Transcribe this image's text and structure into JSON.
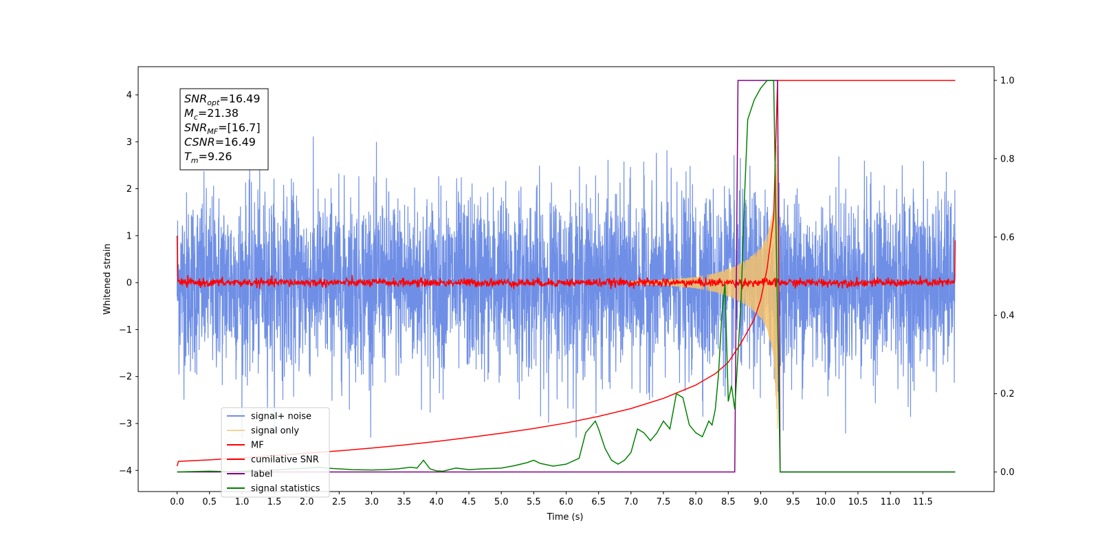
{
  "chart_data": {
    "type": "line",
    "xlabel": "Time (s)",
    "ylabel": "Whitened strain",
    "xlim": [
      -0.6,
      12.6
    ],
    "ylim": [
      -4.45,
      4.6
    ],
    "ylim_right": [
      -0.05,
      1.035
    ],
    "x_ticks": [
      "0.0",
      "0.5",
      "1.0",
      "1.5",
      "2.0",
      "2.5",
      "3.0",
      "3.5",
      "4.0",
      "4.5",
      "5.0",
      "5.5",
      "6.0",
      "6.5",
      "7.0",
      "7.5",
      "8.0",
      "8.5",
      "9.0",
      "9.5",
      "10.0",
      "10.5",
      "11.0",
      "11.5"
    ],
    "y_ticks_left": [
      "−4",
      "−3",
      "−2",
      "−1",
      "0",
      "1",
      "2",
      "3",
      "4"
    ],
    "y_ticks_right": [
      "0.0",
      "0.2",
      "0.4",
      "0.6",
      "0.8",
      "1.0"
    ],
    "grid": false,
    "legend_position": "lower-left",
    "info_box": {
      "lines": [
        {
          "label": "SNR",
          "sub": "opt",
          "value": "=16.49"
        },
        {
          "label": "M",
          "sub": "c",
          "value": "=21.38"
        },
        {
          "label": "SNR",
          "sub": "MF",
          "value": "=[16.7]"
        },
        {
          "label": "CSNR",
          "sub": "",
          "value": "=16.49"
        },
        {
          "label": "T",
          "sub": "m",
          "value": "=9.26"
        }
      ]
    },
    "series": [
      {
        "name": "signal+ noise",
        "color": "#6f8fe6",
        "axis": "left",
        "description": "whitened noise with embedded signal, amplitude envelope approx ±3.3, spans t 0.0 to 12.0",
        "x_range": [
          0.0,
          12.0
        ],
        "envelope": [
          -3.3,
          3.3
        ]
      },
      {
        "name": "signal only",
        "color": "#f5c26b",
        "axis": "left",
        "description": "chirp growing in amplitude toward merger",
        "x": [
          7.0,
          7.5,
          8.0,
          8.3,
          8.6,
          8.8,
          9.0,
          9.1,
          9.2,
          9.26,
          9.3
        ],
        "envelope": [
          0.03,
          0.06,
          0.12,
          0.2,
          0.35,
          0.5,
          0.75,
          1.0,
          1.6,
          3.2,
          0.0
        ]
      },
      {
        "name": "MF",
        "color": "#ff0000",
        "axis": "left",
        "description": "matched filter output, fluctuating near 0 with edge spikes",
        "x_range": [
          0.0,
          12.0
        ],
        "level": 0.0,
        "edge_values": {
          "start": 1.0,
          "end": 0.9
        }
      },
      {
        "name": "cumilative SNR",
        "color": "#ff0000",
        "axis": "right",
        "x": [
          0.0,
          0.02,
          0.5,
          1.0,
          1.5,
          2.0,
          2.5,
          3.0,
          3.5,
          4.0,
          4.5,
          5.0,
          5.5,
          6.0,
          6.5,
          7.0,
          7.5,
          8.0,
          8.3,
          8.5,
          8.7,
          8.9,
          9.0,
          9.1,
          9.2,
          9.26,
          12.0
        ],
        "values": [
          0.015,
          0.027,
          0.031,
          0.036,
          0.042,
          0.048,
          0.054,
          0.061,
          0.069,
          0.078,
          0.088,
          0.099,
          0.111,
          0.125,
          0.142,
          0.162,
          0.188,
          0.222,
          0.251,
          0.28,
          0.33,
          0.39,
          0.44,
          0.52,
          0.65,
          1.0,
          1.0
        ]
      },
      {
        "name": "label",
        "color": "#800080",
        "axis": "right",
        "x": [
          0.0,
          8.6,
          8.65,
          9.26,
          9.3,
          12.0
        ],
        "values": [
          0.0,
          0.0,
          1.0,
          1.0,
          0.0,
          0.0
        ]
      },
      {
        "name": "signal statistics",
        "color": "#008000",
        "axis": "right",
        "x": [
          0.0,
          0.2,
          0.5,
          0.8,
          1.0,
          1.3,
          1.5,
          1.8,
          2.0,
          2.2,
          2.3,
          2.5,
          2.7,
          3.0,
          3.2,
          3.4,
          3.6,
          3.7,
          3.8,
          3.9,
          4.0,
          4.1,
          4.3,
          4.5,
          4.7,
          5.0,
          5.2,
          5.4,
          5.5,
          5.6,
          5.8,
          6.0,
          6.2,
          6.3,
          6.4,
          6.45,
          6.5,
          6.6,
          6.7,
          6.8,
          6.9,
          7.0,
          7.1,
          7.2,
          7.3,
          7.4,
          7.5,
          7.6,
          7.7,
          7.8,
          7.9,
          8.0,
          8.1,
          8.2,
          8.25,
          8.3,
          8.35,
          8.4,
          8.45,
          8.5,
          8.55,
          8.6,
          8.65,
          8.7,
          8.75,
          8.8,
          8.9,
          9.0,
          9.1,
          9.2,
          9.25,
          9.3,
          12.0
        ],
        "values": [
          0.0,
          0.001,
          0.002,
          0.001,
          0.002,
          0.004,
          0.005,
          0.008,
          0.01,
          0.012,
          0.01,
          0.008,
          0.006,
          0.005,
          0.006,
          0.008,
          0.012,
          0.01,
          0.03,
          0.008,
          0.003,
          0.002,
          0.01,
          0.006,
          0.008,
          0.01,
          0.016,
          0.024,
          0.03,
          0.022,
          0.015,
          0.02,
          0.035,
          0.1,
          0.12,
          0.13,
          0.11,
          0.06,
          0.03,
          0.02,
          0.03,
          0.05,
          0.11,
          0.1,
          0.08,
          0.1,
          0.13,
          0.11,
          0.2,
          0.19,
          0.12,
          0.1,
          0.09,
          0.13,
          0.12,
          0.16,
          0.25,
          0.4,
          0.48,
          0.18,
          0.22,
          0.16,
          0.3,
          0.45,
          0.7,
          0.9,
          0.95,
          0.98,
          1.0,
          1.0,
          0.5,
          0.0,
          0.0
        ]
      }
    ]
  }
}
